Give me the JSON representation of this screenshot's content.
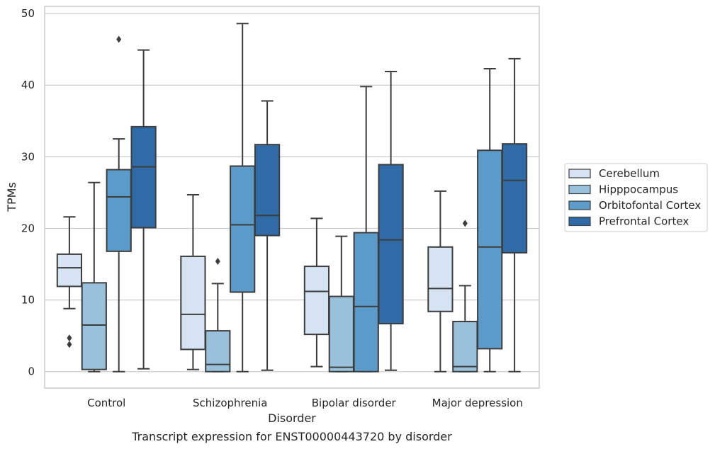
{
  "chart_data": {
    "type": "box",
    "caption": "Transcript expression for ENST00000443720 by disorder",
    "xlabel": "Disorder",
    "ylabel": "TPMs",
    "ylim": [
      -2.3,
      51
    ],
    "yticks": [
      0,
      10,
      20,
      30,
      40,
      50
    ],
    "grid": "horizontal",
    "legend_placement": "right",
    "categories": [
      "Control",
      "Schizophrenia",
      "Bipolar disorder",
      "Major depression"
    ],
    "series": [
      {
        "name": "Cerebellum",
        "color": "#d5e3f2",
        "boxes": [
          {
            "whislo": 8.8,
            "q1": 11.9,
            "med": 14.5,
            "q3": 16.4,
            "whishi": 21.6,
            "fliers": [
              4.7,
              3.8
            ]
          },
          {
            "whislo": 0.3,
            "q1": 3.1,
            "med": 8.0,
            "q3": 16.1,
            "whishi": 24.7,
            "fliers": []
          },
          {
            "whislo": 0.7,
            "q1": 5.2,
            "med": 11.2,
            "q3": 14.7,
            "whishi": 21.4,
            "fliers": []
          },
          {
            "whislo": 0.0,
            "q1": 8.4,
            "med": 11.6,
            "q3": 17.4,
            "whishi": 25.2,
            "fliers": []
          }
        ]
      },
      {
        "name": "Hipppocampus",
        "color": "#9ac1dc",
        "boxes": [
          {
            "whislo": 0.0,
            "q1": 0.3,
            "med": 6.5,
            "q3": 12.4,
            "whishi": 26.4,
            "fliers": []
          },
          {
            "whislo": 0.0,
            "q1": 0.0,
            "med": 1.0,
            "q3": 5.7,
            "whishi": 12.3,
            "fliers": [
              15.4
            ]
          },
          {
            "whislo": 0.0,
            "q1": 0.0,
            "med": 0.6,
            "q3": 10.5,
            "whishi": 18.9,
            "fliers": []
          },
          {
            "whislo": 0.0,
            "q1": 0.0,
            "med": 0.7,
            "q3": 7.0,
            "whishi": 12.0,
            "fliers": [
              20.7
            ]
          }
        ]
      },
      {
        "name": "Orbitofontal Cortex",
        "color": "#5b9bc9",
        "boxes": [
          {
            "whislo": 0.0,
            "q1": 16.8,
            "med": 24.4,
            "q3": 28.2,
            "whishi": 32.5,
            "fliers": [
              46.4
            ]
          },
          {
            "whislo": 0.0,
            "q1": 11.1,
            "med": 20.5,
            "q3": 28.7,
            "whishi": 48.6,
            "fliers": []
          },
          {
            "whislo": 0.0,
            "q1": 0.0,
            "med": 9.1,
            "q3": 19.4,
            "whishi": 39.8,
            "fliers": []
          },
          {
            "whislo": 0.0,
            "q1": 3.2,
            "med": 17.4,
            "q3": 30.9,
            "whishi": 42.3,
            "fliers": []
          }
        ]
      },
      {
        "name": "Prefrontal Cortex",
        "color": "#2f6ca7",
        "boxes": [
          {
            "whislo": 0.4,
            "q1": 20.1,
            "med": 28.6,
            "q3": 34.2,
            "whishi": 44.9,
            "fliers": []
          },
          {
            "whislo": 0.2,
            "q1": 19.0,
            "med": 21.8,
            "q3": 31.7,
            "whishi": 37.8,
            "fliers": []
          },
          {
            "whislo": 0.2,
            "q1": 6.7,
            "med": 18.4,
            "q3": 28.9,
            "whishi": 41.9,
            "fliers": []
          },
          {
            "whislo": 0.0,
            "q1": 16.6,
            "med": 26.7,
            "q3": 31.8,
            "whishi": 43.7,
            "fliers": []
          }
        ]
      }
    ]
  }
}
